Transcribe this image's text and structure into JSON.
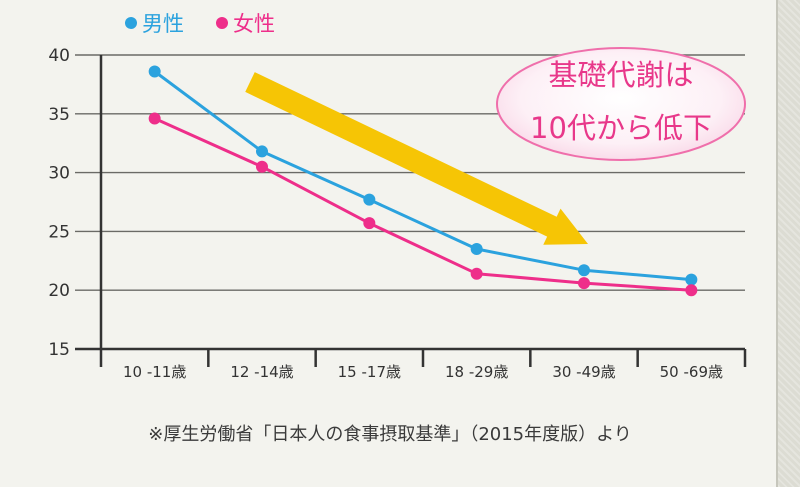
{
  "chart_data": {
    "type": "line",
    "categories": [
      "10 -11歳",
      "12 -14歳",
      "15 -17歳",
      "18 -29歳",
      "30 -49歳",
      "50 -69歳"
    ],
    "series": [
      {
        "name": "男性",
        "color": "#2ba2de",
        "values": [
          38.6,
          31.8,
          27.7,
          23.5,
          21.7,
          20.9
        ]
      },
      {
        "name": "女性",
        "color": "#ee2e8a",
        "values": [
          34.6,
          30.5,
          25.7,
          21.4,
          20.6,
          20.0
        ]
      }
    ],
    "yticks": [
      15,
      20,
      25,
      30,
      35,
      40
    ],
    "ylim": [
      15,
      40
    ],
    "grid": true,
    "legend_position": "top-left",
    "annotations": [
      {
        "lines": [
          "基礎代謝は",
          "10代から低下"
        ],
        "arrow": "downward trend"
      }
    ]
  },
  "footnote": "※厚生労働省「日本人の食事摂取基準」（2015年度版）より"
}
